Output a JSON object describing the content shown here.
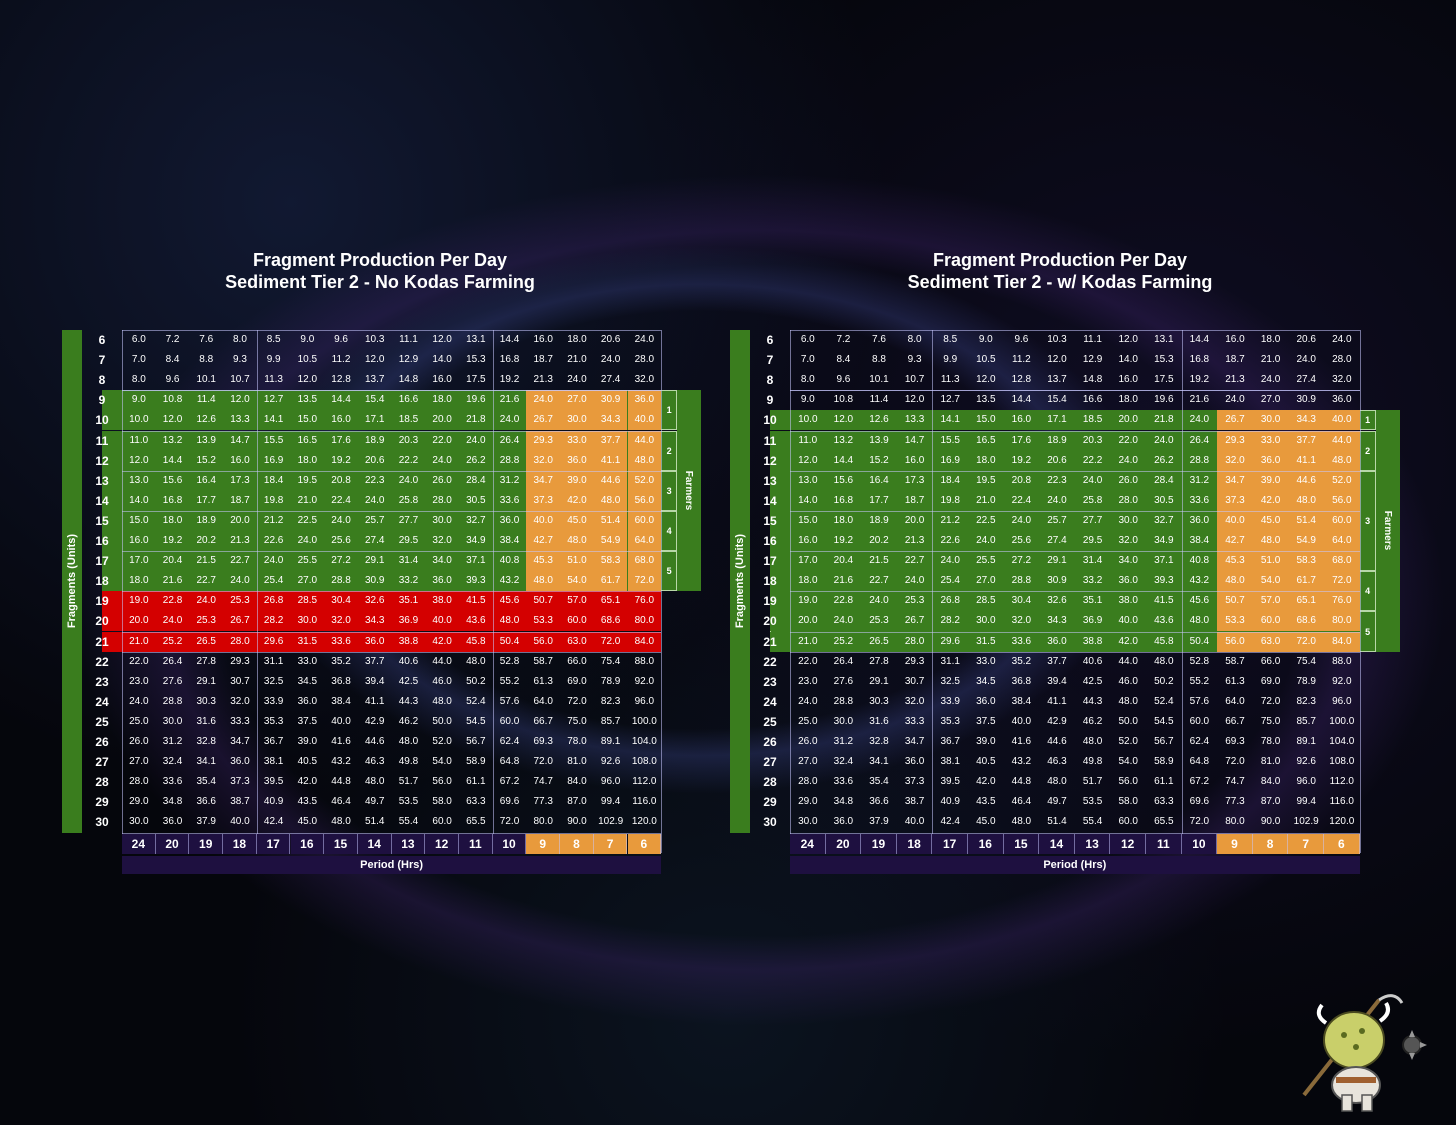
{
  "chart_data": [
    {
      "type": "table",
      "title": "Fragment Production Per Day",
      "subtitle": "Sediment Tier 2 - No Kodas Farming",
      "ylabel": "Fragments (Units)",
      "xlabel": "Period (Hrs)",
      "side_label": "Farmers",
      "farmer_groups": [
        "1",
        "2",
        "3",
        "4",
        "5"
      ],
      "rows": [
        6,
        7,
        8,
        9,
        10,
        11,
        12,
        13,
        14,
        15,
        16,
        17,
        18,
        19,
        20,
        21,
        22,
        23,
        24,
        25,
        26,
        27,
        28,
        29,
        30
      ],
      "periods": [
        24,
        20,
        19,
        18,
        17,
        16,
        15,
        14,
        13,
        12,
        11,
        10,
        9,
        8,
        7,
        6
      ],
      "colors": {
        "green": "#3a7d1e",
        "red": "#d40000",
        "orange": "#e89a3c",
        "dark": "#1e1040",
        "gridline": "#c8c8ff"
      }
    },
    {
      "type": "table",
      "title": "Fragment Production Per Day",
      "subtitle": "Sediment Tier 2 - w/ Kodas Farming",
      "ylabel": "Fragments (Units)",
      "xlabel": "Period (Hrs)",
      "side_label": "Farmers",
      "farmer_groups": [
        "1",
        "2",
        "3",
        "4",
        "5"
      ],
      "rows": [
        6,
        7,
        8,
        9,
        10,
        11,
        12,
        13,
        14,
        15,
        16,
        17,
        18,
        19,
        20,
        21,
        22,
        23,
        24,
        25,
        26,
        27,
        28,
        29,
        30
      ],
      "periods": [
        24,
        20,
        19,
        18,
        17,
        16,
        15,
        14,
        13,
        12,
        11,
        10,
        9,
        8,
        7,
        6
      ],
      "colors": {
        "green": "#3a7d1e",
        "orange": "#e89a3c",
        "dark": "#1e1040",
        "gridline": "#c8c8ff"
      }
    }
  ],
  "values": [
    [
      "6.0",
      "7.2",
      "7.6",
      "8.0",
      "8.5",
      "9.0",
      "9.6",
      "10.3",
      "11.1",
      "12.0",
      "13.1",
      "14.4",
      "16.0",
      "18.0",
      "20.6",
      "24.0"
    ],
    [
      "7.0",
      "8.4",
      "8.8",
      "9.3",
      "9.9",
      "10.5",
      "11.2",
      "12.0",
      "12.9",
      "14.0",
      "15.3",
      "16.8",
      "18.7",
      "21.0",
      "24.0",
      "28.0"
    ],
    [
      "8.0",
      "9.6",
      "10.1",
      "10.7",
      "11.3",
      "12.0",
      "12.8",
      "13.7",
      "14.8",
      "16.0",
      "17.5",
      "19.2",
      "21.3",
      "24.0",
      "27.4",
      "32.0"
    ],
    [
      "9.0",
      "10.8",
      "11.4",
      "12.0",
      "12.7",
      "13.5",
      "14.4",
      "15.4",
      "16.6",
      "18.0",
      "19.6",
      "21.6",
      "24.0",
      "27.0",
      "30.9",
      "36.0"
    ],
    [
      "10.0",
      "12.0",
      "12.6",
      "13.3",
      "14.1",
      "15.0",
      "16.0",
      "17.1",
      "18.5",
      "20.0",
      "21.8",
      "24.0",
      "26.7",
      "30.0",
      "34.3",
      "40.0"
    ],
    [
      "11.0",
      "13.2",
      "13.9",
      "14.7",
      "15.5",
      "16.5",
      "17.6",
      "18.9",
      "20.3",
      "22.0",
      "24.0",
      "26.4",
      "29.3",
      "33.0",
      "37.7",
      "44.0"
    ],
    [
      "12.0",
      "14.4",
      "15.2",
      "16.0",
      "16.9",
      "18.0",
      "19.2",
      "20.6",
      "22.2",
      "24.0",
      "26.2",
      "28.8",
      "32.0",
      "36.0",
      "41.1",
      "48.0"
    ],
    [
      "13.0",
      "15.6",
      "16.4",
      "17.3",
      "18.4",
      "19.5",
      "20.8",
      "22.3",
      "24.0",
      "26.0",
      "28.4",
      "31.2",
      "34.7",
      "39.0",
      "44.6",
      "52.0"
    ],
    [
      "14.0",
      "16.8",
      "17.7",
      "18.7",
      "19.8",
      "21.0",
      "22.4",
      "24.0",
      "25.8",
      "28.0",
      "30.5",
      "33.6",
      "37.3",
      "42.0",
      "48.0",
      "56.0"
    ],
    [
      "15.0",
      "18.0",
      "18.9",
      "20.0",
      "21.2",
      "22.5",
      "24.0",
      "25.7",
      "27.7",
      "30.0",
      "32.7",
      "36.0",
      "40.0",
      "45.0",
      "51.4",
      "60.0"
    ],
    [
      "16.0",
      "19.2",
      "20.2",
      "21.3",
      "22.6",
      "24.0",
      "25.6",
      "27.4",
      "29.5",
      "32.0",
      "34.9",
      "38.4",
      "42.7",
      "48.0",
      "54.9",
      "64.0"
    ],
    [
      "17.0",
      "20.4",
      "21.5",
      "22.7",
      "24.0",
      "25.5",
      "27.2",
      "29.1",
      "31.4",
      "34.0",
      "37.1",
      "40.8",
      "45.3",
      "51.0",
      "58.3",
      "68.0"
    ],
    [
      "18.0",
      "21.6",
      "22.7",
      "24.0",
      "25.4",
      "27.0",
      "28.8",
      "30.9",
      "33.2",
      "36.0",
      "39.3",
      "43.2",
      "48.0",
      "54.0",
      "61.7",
      "72.0"
    ],
    [
      "19.0",
      "22.8",
      "24.0",
      "25.3",
      "26.8",
      "28.5",
      "30.4",
      "32.6",
      "35.1",
      "38.0",
      "41.5",
      "45.6",
      "50.7",
      "57.0",
      "65.1",
      "76.0"
    ],
    [
      "20.0",
      "24.0",
      "25.3",
      "26.7",
      "28.2",
      "30.0",
      "32.0",
      "34.3",
      "36.9",
      "40.0",
      "43.6",
      "48.0",
      "53.3",
      "60.0",
      "68.6",
      "80.0"
    ],
    [
      "21.0",
      "25.2",
      "26.5",
      "28.0",
      "29.6",
      "31.5",
      "33.6",
      "36.0",
      "38.8",
      "42.0",
      "45.8",
      "50.4",
      "56.0",
      "63.0",
      "72.0",
      "84.0"
    ],
    [
      "22.0",
      "26.4",
      "27.8",
      "29.3",
      "31.1",
      "33.0",
      "35.2",
      "37.7",
      "40.6",
      "44.0",
      "48.0",
      "52.8",
      "58.7",
      "66.0",
      "75.4",
      "88.0"
    ],
    [
      "23.0",
      "27.6",
      "29.1",
      "30.7",
      "32.5",
      "34.5",
      "36.8",
      "39.4",
      "42.5",
      "46.0",
      "50.2",
      "55.2",
      "61.3",
      "69.0",
      "78.9",
      "92.0"
    ],
    [
      "24.0",
      "28.8",
      "30.3",
      "32.0",
      "33.9",
      "36.0",
      "38.4",
      "41.1",
      "44.3",
      "48.0",
      "52.4",
      "57.6",
      "64.0",
      "72.0",
      "82.3",
      "96.0"
    ],
    [
      "25.0",
      "30.0",
      "31.6",
      "33.3",
      "35.3",
      "37.5",
      "40.0",
      "42.9",
      "46.2",
      "50.0",
      "54.5",
      "60.0",
      "66.7",
      "75.0",
      "85.7",
      "100.0"
    ],
    [
      "26.0",
      "31.2",
      "32.8",
      "34.7",
      "36.7",
      "39.0",
      "41.6",
      "44.6",
      "48.0",
      "52.0",
      "56.7",
      "62.4",
      "69.3",
      "78.0",
      "89.1",
      "104.0"
    ],
    [
      "27.0",
      "32.4",
      "34.1",
      "36.0",
      "38.1",
      "40.5",
      "43.2",
      "46.3",
      "49.8",
      "54.0",
      "58.9",
      "64.8",
      "72.0",
      "81.0",
      "92.6",
      "108.0"
    ],
    [
      "28.0",
      "33.6",
      "35.4",
      "37.3",
      "39.5",
      "42.0",
      "44.8",
      "48.0",
      "51.7",
      "56.0",
      "61.1",
      "67.2",
      "74.7",
      "84.0",
      "96.0",
      "112.0"
    ],
    [
      "29.0",
      "34.8",
      "36.6",
      "38.7",
      "40.9",
      "43.5",
      "46.4",
      "49.7",
      "53.5",
      "58.0",
      "63.3",
      "69.6",
      "77.3",
      "87.0",
      "99.4",
      "116.0"
    ],
    [
      "30.0",
      "36.0",
      "37.9",
      "40.0",
      "42.4",
      "45.0",
      "48.0",
      "51.4",
      "55.4",
      "60.0",
      "65.5",
      "72.0",
      "80.0",
      "90.0",
      "102.9",
      "120.0"
    ]
  ]
}
